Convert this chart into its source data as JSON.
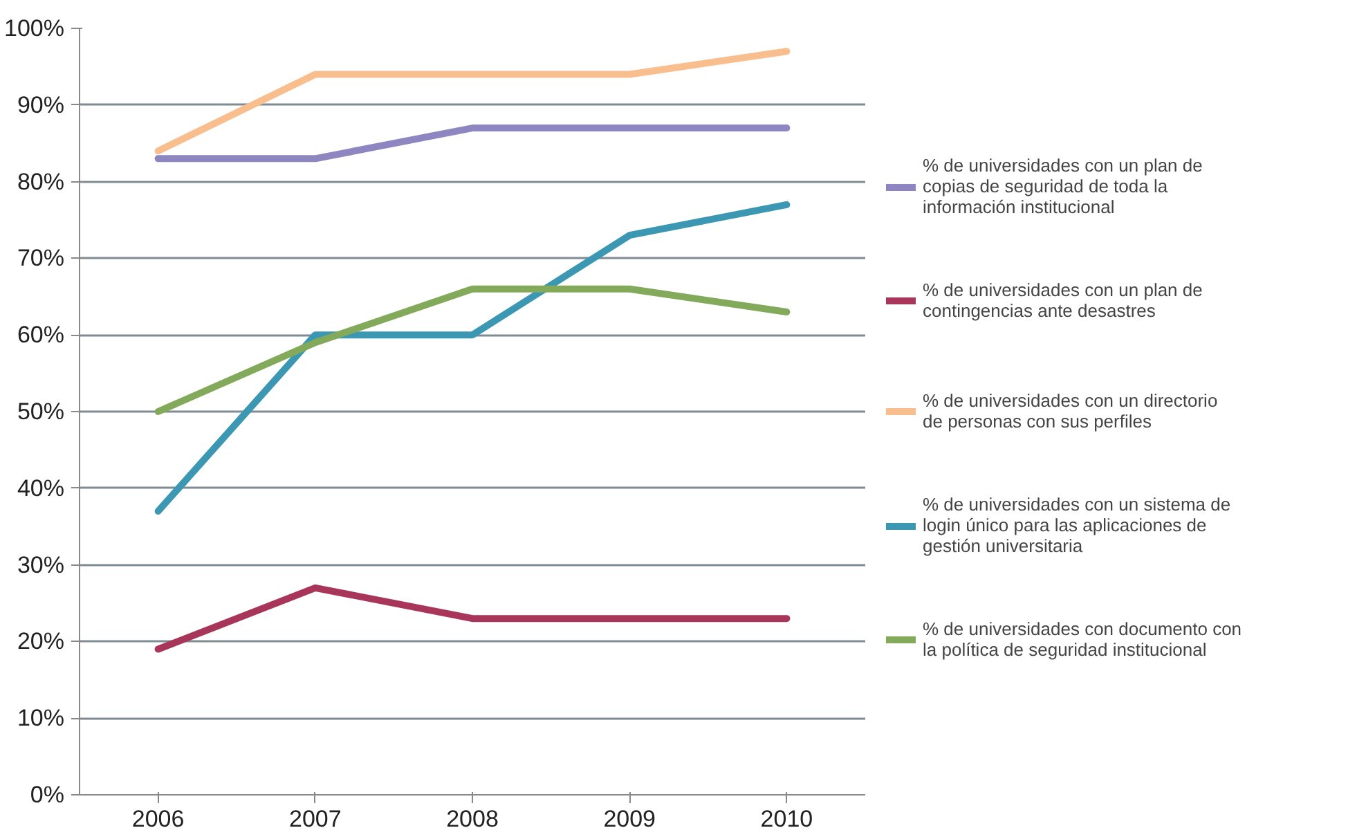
{
  "chart_data": {
    "type": "line",
    "categories": [
      "2006",
      "2007",
      "2008",
      "2009",
      "2010"
    ],
    "series": [
      {
        "name": "% de universidades con un plan de copias de seguridad de toda la información institucional",
        "color": "#8e86c0",
        "values": [
          83,
          83,
          87,
          87,
          87
        ]
      },
      {
        "name": "% de universidades con un plan de contingencias ante desastres",
        "color": "#a8365a",
        "values": [
          19,
          27,
          23,
          23,
          23
        ]
      },
      {
        "name": "% de universidades con un directorio de personas con sus perfiles",
        "color": "#f9be8e",
        "values": [
          84,
          94,
          94,
          94,
          97
        ]
      },
      {
        "name": "% de universidades con un sistema de login único para las aplicaciones de gestión universitaria",
        "color": "#3b97b2",
        "values": [
          37,
          60,
          60,
          73,
          77
        ]
      },
      {
        "name": "% de universidades con documento con la política de seguridad institucional",
        "color": "#82aa5a",
        "values": [
          50,
          59,
          66,
          66,
          63
        ]
      }
    ],
    "ylim": [
      0,
      100
    ],
    "yticks": [
      {
        "value": 0,
        "label": "0%"
      },
      {
        "value": 10,
        "label": "10%"
      },
      {
        "value": 20,
        "label": "20%"
      },
      {
        "value": 30,
        "label": "30%"
      },
      {
        "value": 40,
        "label": "40%"
      },
      {
        "value": 50,
        "label": "50%"
      },
      {
        "value": 60,
        "label": "60%"
      },
      {
        "value": 70,
        "label": "70%"
      },
      {
        "value": 80,
        "label": "80%"
      },
      {
        "value": 90,
        "label": "90%"
      },
      {
        "value": 100,
        "label": "100%"
      }
    ],
    "grid": "y",
    "legend": "right",
    "marker": "none",
    "line_style": "solid"
  }
}
